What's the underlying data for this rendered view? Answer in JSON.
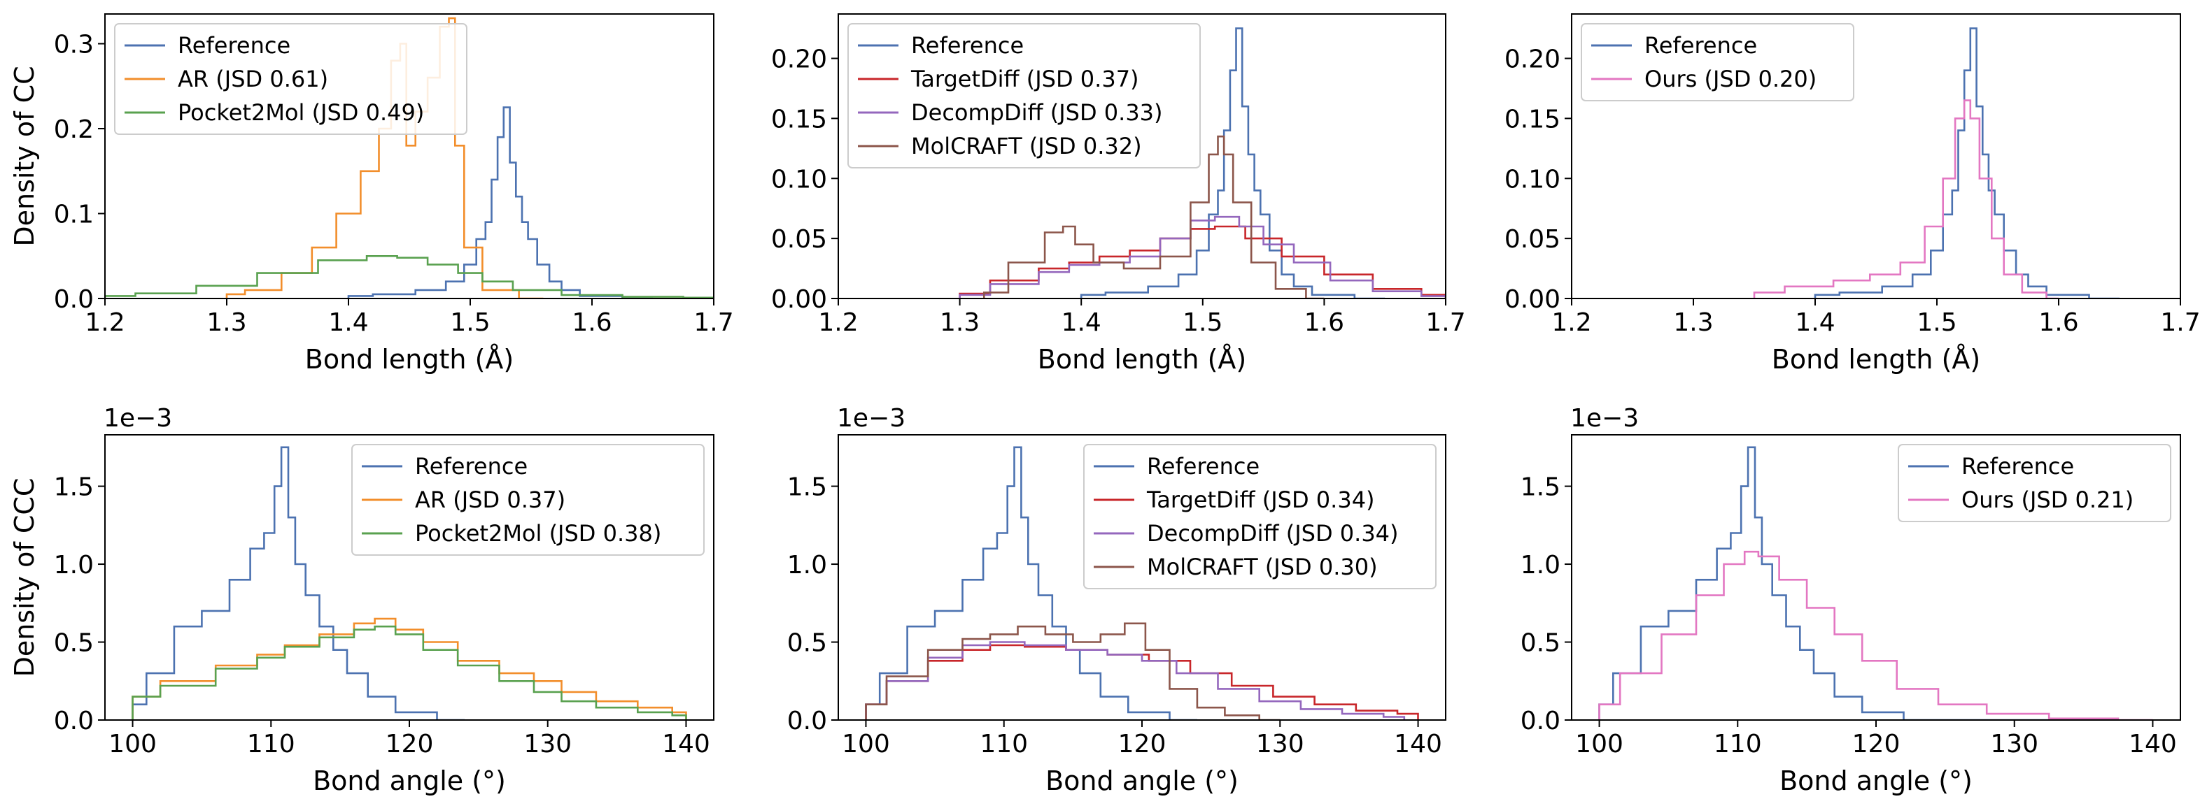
{
  "colors": {
    "reference": "#4C72B0",
    "ar": "#F28E2B",
    "pocket2mol": "#59A14F",
    "targetdiff": "#C8262A",
    "decompdiff": "#9467BD",
    "molcraft": "#8C564B",
    "ours": "#E377C2"
  },
  "chart_data": [
    {
      "type": "line",
      "panel": "top-left",
      "xlabel": "Bond length (Å)",
      "ylabel": "Density of CC",
      "xlim": [
        1.2,
        1.7
      ],
      "ylim": [
        0,
        0.335
      ],
      "xticks": [
        1.2,
        1.3,
        1.4,
        1.5,
        1.6,
        1.7
      ],
      "xtick_labels": [
        "1.2",
        "1.3",
        "1.4",
        "1.5",
        "1.6",
        "1.7"
      ],
      "yticks": [
        0,
        0.1,
        0.2,
        0.3
      ],
      "ytick_labels": [
        "0.0",
        "0.1",
        "0.2",
        "0.3"
      ],
      "offset_text": "",
      "legend_loc": "upper-left",
      "series": [
        {
          "name": "Reference",
          "color_key": "reference",
          "x": [
            1.4,
            1.44,
            1.47,
            1.49,
            1.5,
            1.51,
            1.515,
            1.52,
            1.525,
            1.53,
            1.535,
            1.54,
            1.545,
            1.55,
            1.56,
            1.57,
            1.58,
            1.6,
            1.65
          ],
          "y": [
            0.003,
            0.005,
            0.01,
            0.02,
            0.04,
            0.07,
            0.09,
            0.14,
            0.19,
            0.225,
            0.16,
            0.12,
            0.09,
            0.07,
            0.04,
            0.02,
            0.01,
            0.003,
            0.0
          ]
        },
        {
          "name": "AR (JSD 0.61)",
          "color_key": "ar",
          "x": [
            1.3,
            1.33,
            1.36,
            1.38,
            1.4,
            1.42,
            1.43,
            1.44,
            1.445,
            1.45,
            1.46,
            1.47,
            1.48,
            1.485,
            1.49,
            1.5,
            1.52,
            1.56
          ],
          "y": [
            0.005,
            0.01,
            0.03,
            0.06,
            0.1,
            0.15,
            0.2,
            0.28,
            0.3,
            0.18,
            0.22,
            0.26,
            0.32,
            0.33,
            0.18,
            0.06,
            0.01,
            0.0
          ]
        },
        {
          "name": "Pocket2Mol (JSD 0.49)",
          "color_key": "pocket2mol",
          "x": [
            1.2,
            1.25,
            1.3,
            1.35,
            1.4,
            1.43,
            1.45,
            1.48,
            1.5,
            1.52,
            1.55,
            1.6,
            1.65,
            1.7
          ],
          "y": [
            0.003,
            0.006,
            0.015,
            0.03,
            0.045,
            0.05,
            0.048,
            0.04,
            0.03,
            0.02,
            0.01,
            0.004,
            0.002,
            0.001
          ]
        }
      ]
    },
    {
      "type": "line",
      "panel": "top-middle",
      "xlabel": "Bond length (Å)",
      "ylabel": "",
      "xlim": [
        1.2,
        1.7
      ],
      "ylim": [
        0,
        0.237
      ],
      "xticks": [
        1.2,
        1.3,
        1.4,
        1.5,
        1.6,
        1.7
      ],
      "xtick_labels": [
        "1.2",
        "1.3",
        "1.4",
        "1.5",
        "1.6",
        "1.7"
      ],
      "yticks": [
        0,
        0.05,
        0.1,
        0.15,
        0.2
      ],
      "ytick_labels": [
        "0.00",
        "0.05",
        "0.10",
        "0.15",
        "0.20"
      ],
      "offset_text": "",
      "legend_loc": "upper-left",
      "series": [
        {
          "name": "Reference",
          "color_key": "reference",
          "x": [
            1.4,
            1.44,
            1.47,
            1.49,
            1.5,
            1.51,
            1.515,
            1.52,
            1.525,
            1.53,
            1.535,
            1.54,
            1.545,
            1.55,
            1.56,
            1.57,
            1.58,
            1.6,
            1.65
          ],
          "y": [
            0.003,
            0.005,
            0.01,
            0.02,
            0.04,
            0.07,
            0.09,
            0.14,
            0.19,
            0.225,
            0.16,
            0.12,
            0.09,
            0.07,
            0.04,
            0.02,
            0.01,
            0.003,
            0.0
          ]
        },
        {
          "name": "TargetDiff (JSD 0.37)",
          "color_key": "targetdiff",
          "x": [
            1.3,
            1.35,
            1.38,
            1.4,
            1.43,
            1.45,
            1.48,
            1.5,
            1.52,
            1.55,
            1.58,
            1.62,
            1.66,
            1.7
          ],
          "y": [
            0.004,
            0.015,
            0.025,
            0.03,
            0.035,
            0.04,
            0.05,
            0.058,
            0.06,
            0.05,
            0.035,
            0.02,
            0.008,
            0.003
          ]
        },
        {
          "name": "DecompDiff (JSD 0.33)",
          "color_key": "decompdiff",
          "x": [
            1.3,
            1.35,
            1.38,
            1.4,
            1.43,
            1.45,
            1.48,
            1.5,
            1.52,
            1.54,
            1.56,
            1.59,
            1.62,
            1.66,
            1.7
          ],
          "y": [
            0.003,
            0.012,
            0.022,
            0.028,
            0.03,
            0.035,
            0.05,
            0.065,
            0.068,
            0.06,
            0.045,
            0.03,
            0.015,
            0.006,
            0.002
          ]
        },
        {
          "name": "MolCRAFT (JSD 0.32)",
          "color_key": "molcraft",
          "x": [
            1.32,
            1.36,
            1.38,
            1.39,
            1.4,
            1.42,
            1.45,
            1.48,
            1.5,
            1.51,
            1.515,
            1.52,
            1.53,
            1.55,
            1.57,
            1.6
          ],
          "y": [
            0.005,
            0.03,
            0.055,
            0.06,
            0.045,
            0.03,
            0.025,
            0.035,
            0.08,
            0.12,
            0.135,
            0.12,
            0.08,
            0.03,
            0.008,
            0.0
          ]
        }
      ]
    },
    {
      "type": "line",
      "panel": "top-right",
      "xlabel": "Bond length (Å)",
      "ylabel": "",
      "xlim": [
        1.2,
        1.7
      ],
      "ylim": [
        0,
        0.237
      ],
      "xticks": [
        1.2,
        1.3,
        1.4,
        1.5,
        1.6,
        1.7
      ],
      "xtick_labels": [
        "1.2",
        "1.3",
        "1.4",
        "1.5",
        "1.6",
        "1.7"
      ],
      "yticks": [
        0,
        0.05,
        0.1,
        0.15,
        0.2
      ],
      "ytick_labels": [
        "0.00",
        "0.05",
        "0.10",
        "0.15",
        "0.20"
      ],
      "offset_text": "",
      "legend_loc": "upper-left",
      "series": [
        {
          "name": "Reference",
          "color_key": "reference",
          "x": [
            1.4,
            1.44,
            1.47,
            1.49,
            1.5,
            1.51,
            1.515,
            1.52,
            1.525,
            1.53,
            1.535,
            1.54,
            1.545,
            1.55,
            1.56,
            1.57,
            1.58,
            1.6,
            1.65
          ],
          "y": [
            0.003,
            0.005,
            0.01,
            0.02,
            0.04,
            0.07,
            0.09,
            0.14,
            0.19,
            0.225,
            0.16,
            0.12,
            0.09,
            0.07,
            0.04,
            0.02,
            0.01,
            0.003,
            0.0
          ]
        },
        {
          "name": "Ours (JSD 0.20)",
          "color_key": "ours",
          "x": [
            1.35,
            1.4,
            1.43,
            1.46,
            1.48,
            1.5,
            1.51,
            1.52,
            1.525,
            1.53,
            1.54,
            1.55,
            1.56,
            1.58,
            1.6
          ],
          "y": [
            0.005,
            0.01,
            0.015,
            0.02,
            0.03,
            0.06,
            0.1,
            0.15,
            0.165,
            0.15,
            0.1,
            0.05,
            0.02,
            0.005,
            0.0
          ]
        }
      ]
    },
    {
      "type": "line",
      "panel": "bottom-left",
      "xlabel": "Bond angle (°)",
      "ylabel": "Density of CCC",
      "xlim": [
        98,
        142
      ],
      "ylim": [
        0,
        1.83
      ],
      "xticks": [
        100,
        110,
        120,
        130,
        140
      ],
      "xtick_labels": [
        "100",
        "110",
        "120",
        "130",
        "140"
      ],
      "yticks": [
        0,
        0.5,
        1.0,
        1.5
      ],
      "ytick_labels": [
        "0.0",
        "0.5",
        "1.0",
        "1.5"
      ],
      "offset_text": "1e−3",
      "legend_loc": "upper-right",
      "series": [
        {
          "name": "Reference",
          "color_key": "reference",
          "x": [
            100,
            102,
            104,
            106,
            108,
            109,
            110,
            110.5,
            111,
            111.5,
            112,
            113,
            114,
            115,
            116,
            118,
            120,
            124
          ],
          "y": [
            0.1,
            0.3,
            0.6,
            0.7,
            0.9,
            1.1,
            1.2,
            1.5,
            1.75,
            1.3,
            1.0,
            0.8,
            0.6,
            0.45,
            0.3,
            0.15,
            0.05,
            0.0
          ]
        },
        {
          "name": "AR (JSD 0.37)",
          "color_key": "ar",
          "x": [
            100,
            104,
            108,
            110,
            112,
            115,
            117,
            118,
            120,
            122,
            125,
            128,
            130,
            132,
            135,
            138,
            140
          ],
          "y": [
            0.15,
            0.25,
            0.35,
            0.42,
            0.48,
            0.55,
            0.62,
            0.65,
            0.58,
            0.5,
            0.38,
            0.3,
            0.25,
            0.18,
            0.12,
            0.08,
            0.05
          ]
        },
        {
          "name": "Pocket2Mol (JSD 0.38)",
          "color_key": "pocket2mol",
          "x": [
            100,
            104,
            108,
            110,
            112,
            115,
            117,
            118,
            120,
            122,
            125,
            128,
            130,
            132,
            135,
            138,
            140
          ],
          "y": [
            0.15,
            0.22,
            0.33,
            0.4,
            0.47,
            0.53,
            0.58,
            0.6,
            0.55,
            0.45,
            0.35,
            0.25,
            0.18,
            0.12,
            0.08,
            0.05,
            0.03
          ]
        }
      ]
    },
    {
      "type": "line",
      "panel": "bottom-middle",
      "xlabel": "Bond angle (°)",
      "ylabel": "",
      "xlim": [
        98,
        142
      ],
      "ylim": [
        0,
        1.83
      ],
      "xticks": [
        100,
        110,
        120,
        130,
        140
      ],
      "xtick_labels": [
        "100",
        "110",
        "120",
        "130",
        "140"
      ],
      "yticks": [
        0,
        0.5,
        1.0,
        1.5
      ],
      "ytick_labels": [
        "0.0",
        "0.5",
        "1.0",
        "1.5"
      ],
      "offset_text": "1e−3",
      "legend_loc": "upper-right",
      "series": [
        {
          "name": "Reference",
          "color_key": "reference",
          "x": [
            100,
            102,
            104,
            106,
            108,
            109,
            110,
            110.5,
            111,
            111.5,
            112,
            113,
            114,
            115,
            116,
            118,
            120,
            124
          ],
          "y": [
            0.1,
            0.3,
            0.6,
            0.7,
            0.9,
            1.1,
            1.2,
            1.5,
            1.75,
            1.3,
            1.0,
            0.8,
            0.6,
            0.45,
            0.3,
            0.15,
            0.05,
            0.0
          ]
        },
        {
          "name": "TargetDiff (JSD 0.34)",
          "color_key": "targetdiff",
          "x": [
            100,
            103,
            106,
            108,
            110,
            113,
            116,
            119,
            122,
            125,
            128,
            131,
            134,
            137,
            140
          ],
          "y": [
            0.1,
            0.25,
            0.38,
            0.45,
            0.48,
            0.47,
            0.45,
            0.42,
            0.38,
            0.3,
            0.22,
            0.15,
            0.1,
            0.06,
            0.04
          ]
        },
        {
          "name": "DecompDiff (JSD 0.34)",
          "color_key": "decompdiff",
          "x": [
            100,
            103,
            106,
            108,
            110,
            113,
            116,
            119,
            121,
            124,
            127,
            130,
            133,
            136,
            139
          ],
          "y": [
            0.1,
            0.25,
            0.4,
            0.48,
            0.5,
            0.48,
            0.45,
            0.42,
            0.38,
            0.3,
            0.2,
            0.12,
            0.07,
            0.04,
            0.02
          ]
        },
        {
          "name": "MolCRAFT (JSD 0.30)",
          "color_key": "molcraft",
          "x": [
            100,
            103,
            106,
            108,
            110,
            112,
            114,
            116,
            118,
            119.5,
            121,
            123,
            125,
            127,
            130
          ],
          "y": [
            0.1,
            0.28,
            0.45,
            0.52,
            0.55,
            0.6,
            0.55,
            0.5,
            0.55,
            0.62,
            0.45,
            0.2,
            0.08,
            0.03,
            0.0
          ]
        }
      ]
    },
    {
      "type": "line",
      "panel": "bottom-right",
      "xlabel": "Bond angle (°)",
      "ylabel": "",
      "xlim": [
        98,
        142
      ],
      "ylim": [
        0,
        1.83
      ],
      "xticks": [
        100,
        110,
        120,
        130,
        140
      ],
      "xtick_labels": [
        "100",
        "110",
        "120",
        "130",
        "140"
      ],
      "yticks": [
        0,
        0.5,
        1.0,
        1.5
      ],
      "ytick_labels": [
        "0.0",
        "0.5",
        "1.0",
        "1.5"
      ],
      "offset_text": "1e−3",
      "legend_loc": "upper-right",
      "series": [
        {
          "name": "Reference",
          "color_key": "reference",
          "x": [
            100,
            102,
            104,
            106,
            108,
            109,
            110,
            110.5,
            111,
            111.5,
            112,
            113,
            114,
            115,
            116,
            118,
            120,
            124,
            136
          ],
          "y": [
            0.1,
            0.3,
            0.6,
            0.7,
            0.9,
            1.1,
            1.2,
            1.5,
            1.75,
            1.3,
            1.0,
            0.8,
            0.6,
            0.45,
            0.3,
            0.15,
            0.05,
            0.0,
            0.0
          ]
        },
        {
          "name": "Ours (JSD 0.21)",
          "color_key": "ours",
          "x": [
            100,
            103,
            106,
            108,
            110,
            111,
            112,
            114,
            116,
            118,
            120,
            123,
            126,
            130,
            135,
            140
          ],
          "y": [
            0.1,
            0.3,
            0.55,
            0.8,
            1.0,
            1.08,
            1.05,
            0.9,
            0.72,
            0.55,
            0.38,
            0.2,
            0.1,
            0.04,
            0.01,
            0.0
          ]
        }
      ]
    }
  ]
}
